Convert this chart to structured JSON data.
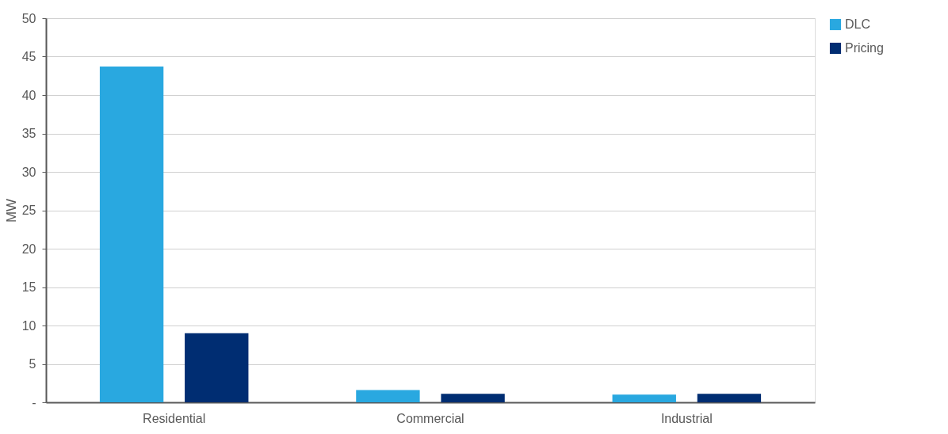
{
  "chart_data": {
    "type": "bar",
    "ylabel": "MW",
    "categories": [
      "Residential",
      "Commercial",
      "Industrial"
    ],
    "series": [
      {
        "name": "DLC",
        "color": "#29a8e0",
        "values": [
          43.7,
          1.6,
          1.0
        ]
      },
      {
        "name": "Pricing",
        "color": "#002d72",
        "values": [
          9.0,
          1.1,
          1.1
        ]
      }
    ],
    "ylim": [
      0,
      50
    ],
    "yticks": [
      {
        "value": 0,
        "label": "-"
      },
      5,
      10,
      15,
      20,
      25,
      30,
      35,
      40,
      45,
      50
    ],
    "grid": "y",
    "legend": "right"
  }
}
